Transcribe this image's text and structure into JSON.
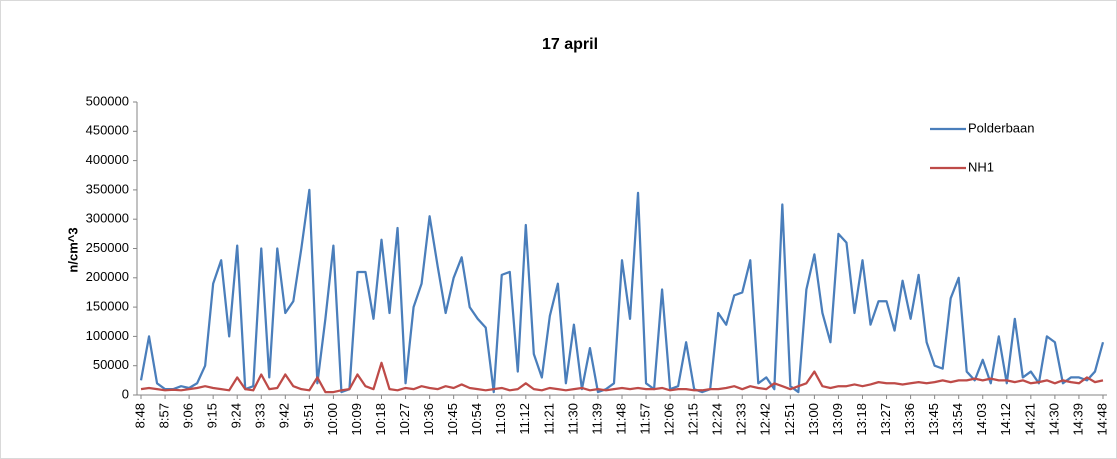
{
  "chart_data": {
    "type": "line",
    "title": "17 april",
    "y_label": "n/cm^3",
    "categories": [
      "8:48",
      null,
      null,
      "8:57",
      null,
      null,
      "9:06",
      null,
      null,
      "9:15",
      null,
      null,
      "9:24",
      null,
      null,
      "9:33",
      null,
      null,
      "9:42",
      null,
      null,
      "9:51",
      null,
      null,
      "10:00",
      null,
      null,
      "10:09",
      null,
      null,
      "10:18",
      null,
      null,
      "10:27",
      null,
      null,
      "10:36",
      null,
      null,
      "10:45",
      null,
      null,
      "10:54",
      null,
      null,
      "11:03",
      null,
      null,
      "11:12",
      null,
      null,
      "11:21",
      null,
      null,
      "11:30",
      null,
      null,
      "11:39",
      null,
      null,
      "11:48",
      null,
      null,
      "11:57",
      null,
      null,
      "12:06",
      null,
      null,
      "12:15",
      null,
      null,
      "12:24",
      null,
      null,
      "12:33",
      null,
      null,
      "12:42",
      null,
      null,
      "12:51",
      null,
      null,
      "13:00",
      null,
      null,
      "13:09",
      null,
      null,
      "13:18",
      null,
      null,
      "13:27",
      null,
      null,
      "13:36",
      null,
      null,
      "13:45",
      null,
      null,
      "13:54",
      null,
      null,
      "14:03",
      null,
      null,
      "14:12",
      null,
      null,
      "14:21",
      null,
      null,
      "14:30",
      null,
      null,
      "14:39",
      null,
      null,
      "14:48"
    ],
    "series": [
      {
        "name": "Polderbaan",
        "color": "#4a7ebb",
        "values": [
          25000,
          100000,
          20000,
          10000,
          10000,
          15000,
          12000,
          20000,
          50000,
          190000,
          230000,
          100000,
          255000,
          10000,
          15000,
          250000,
          30000,
          250000,
          140000,
          160000,
          250000,
          350000,
          20000,
          130000,
          255000,
          5000,
          10000,
          210000,
          210000,
          130000,
          265000,
          140000,
          285000,
          20000,
          150000,
          190000,
          305000,
          220000,
          140000,
          200000,
          235000,
          150000,
          130000,
          115000,
          5000,
          205000,
          210000,
          40000,
          290000,
          70000,
          30000,
          135000,
          190000,
          20000,
          120000,
          10000,
          80000,
          5000,
          10000,
          20000,
          230000,
          130000,
          345000,
          20000,
          10000,
          180000,
          10000,
          15000,
          90000,
          10000,
          5000,
          10000,
          140000,
          120000,
          170000,
          175000,
          230000,
          20000,
          30000,
          10000,
          325000,
          15000,
          5000,
          180000,
          240000,
          140000,
          90000,
          275000,
          260000,
          140000,
          230000,
          120000,
          160000,
          160000,
          110000,
          195000,
          130000,
          205000,
          90000,
          50000,
          45000,
          165000,
          200000,
          40000,
          25000,
          60000,
          20000,
          100000,
          20000,
          130000,
          30000,
          40000,
          20000,
          100000,
          90000,
          20000,
          30000,
          30000,
          25000,
          40000,
          90000
        ]
      },
      {
        "name": "NH1",
        "color": "#be4b48",
        "values": [
          10000,
          12000,
          10000,
          8000,
          9000,
          8000,
          10000,
          12000,
          15000,
          12000,
          10000,
          8000,
          30000,
          10000,
          8000,
          35000,
          10000,
          12000,
          35000,
          15000,
          10000,
          8000,
          30000,
          5000,
          5000,
          8000,
          10000,
          35000,
          15000,
          10000,
          55000,
          10000,
          8000,
          12000,
          10000,
          15000,
          12000,
          10000,
          15000,
          12000,
          18000,
          12000,
          10000,
          8000,
          10000,
          12000,
          8000,
          10000,
          20000,
          10000,
          8000,
          12000,
          10000,
          8000,
          10000,
          12000,
          8000,
          10000,
          8000,
          10000,
          12000,
          10000,
          12000,
          10000,
          10000,
          12000,
          8000,
          10000,
          10000,
          8000,
          8000,
          10000,
          10000,
          12000,
          15000,
          10000,
          15000,
          12000,
          10000,
          20000,
          15000,
          10000,
          15000,
          20000,
          40000,
          15000,
          12000,
          15000,
          15000,
          18000,
          15000,
          18000,
          22000,
          20000,
          20000,
          18000,
          20000,
          22000,
          20000,
          22000,
          25000,
          22000,
          25000,
          25000,
          28000,
          25000,
          28000,
          25000,
          25000,
          22000,
          25000,
          20000,
          22000,
          25000,
          20000,
          25000,
          22000,
          20000,
          30000,
          22000,
          25000
        ]
      }
    ],
    "ylim": [
      0,
      500000
    ],
    "yticks": [
      0,
      50000,
      100000,
      150000,
      200000,
      250000,
      300000,
      350000,
      400000,
      450000,
      500000
    ],
    "grid": false,
    "legend": "top-right"
  }
}
